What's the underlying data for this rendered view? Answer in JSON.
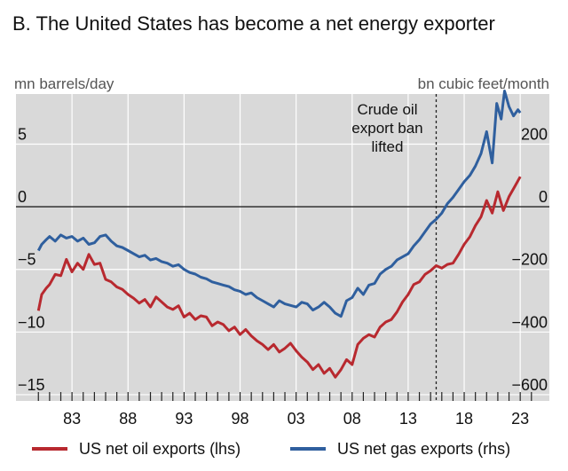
{
  "chart_data": {
    "type": "line",
    "title": "B. The United States has become a net energy exporter",
    "left_axis_label": "mn barrels/day",
    "right_axis_label": "bn cubic feet/month",
    "left_ylim": [
      -15.5,
      9
    ],
    "right_ylim": [
      -620,
      360
    ],
    "left_ticks": [
      {
        "value": 5,
        "label": "5"
      },
      {
        "value": 0,
        "label": "0"
      },
      {
        "value": -5,
        "label": "−5"
      },
      {
        "value": -10,
        "label": "−10"
      },
      {
        "value": -15,
        "label": "−15"
      }
    ],
    "right_ticks": [
      {
        "value": 200,
        "label": "200"
      },
      {
        "value": 0,
        "label": "0"
      },
      {
        "value": -200,
        "label": "−200"
      },
      {
        "value": -400,
        "label": "−400"
      },
      {
        "value": -600,
        "label": "−600"
      }
    ],
    "xlim": [
      1978.0,
      2025.6
    ],
    "x_ticks": [
      {
        "value": 1983,
        "label": "83"
      },
      {
        "value": 1988,
        "label": "88"
      },
      {
        "value": 1993,
        "label": "93"
      },
      {
        "value": 1998,
        "label": "98"
      },
      {
        "value": 2003,
        "label": "03"
      },
      {
        "value": 2008,
        "label": "08"
      },
      {
        "value": 2013,
        "label": "13"
      },
      {
        "value": 2018,
        "label": "18"
      },
      {
        "value": 2023,
        "label": "23"
      }
    ],
    "minor_tick_years": [
      1980,
      1981,
      1982,
      1983,
      1984,
      1985,
      1986,
      1987,
      1988,
      1989,
      1990,
      1991,
      1992,
      1993,
      1994,
      1995,
      1996,
      1997,
      1998,
      1999,
      2000,
      2001,
      2002,
      2003,
      2004,
      2005,
      2006,
      2007,
      2008,
      2009,
      2010,
      2011,
      2012,
      2013,
      2014,
      2015,
      2016,
      2017,
      2018,
      2019,
      2020,
      2021,
      2022,
      2023,
      2024
    ],
    "annotation": {
      "x": 2015.5,
      "lines": [
        "Crude oil",
        "export ban",
        "lifted"
      ]
    },
    "colors": {
      "oil": "#b8292f",
      "gas": "#2f5f9e",
      "plot_bg": "#d9d9d9",
      "grid": "#ffffff",
      "zero_line": "#222222",
      "dashed_line": "#222222"
    },
    "grid": true,
    "legend_position": "bottom",
    "series": [
      {
        "key": "oil",
        "name": "US net oil exports (lhs)",
        "axis": "left",
        "x": [
          1980.0,
          1980.3,
          1980.7,
          1981.0,
          1981.5,
          1982.0,
          1982.5,
          1983.0,
          1983.5,
          1984.0,
          1984.5,
          1985.0,
          1985.5,
          1986.0,
          1986.5,
          1987.0,
          1987.5,
          1988.0,
          1988.5,
          1989.0,
          1989.5,
          1990.0,
          1990.5,
          1991.0,
          1991.5,
          1992.0,
          1992.5,
          1993.0,
          1993.5,
          1994.0,
          1994.5,
          1995.0,
          1995.5,
          1996.0,
          1996.5,
          1997.0,
          1997.5,
          1998.0,
          1998.5,
          1999.0,
          1999.5,
          2000.0,
          2000.5,
          2001.0,
          2001.5,
          2002.0,
          2002.5,
          2003.0,
          2003.5,
          2004.0,
          2004.5,
          2005.0,
          2005.5,
          2006.0,
          2006.5,
          2007.0,
          2007.5,
          2008.0,
          2008.5,
          2009.0,
          2009.5,
          2010.0,
          2010.5,
          2011.0,
          2011.5,
          2012.0,
          2012.5,
          2013.0,
          2013.5,
          2014.0,
          2014.5,
          2015.0,
          2015.5,
          2016.0,
          2016.5,
          2017.0,
          2017.5,
          2018.0,
          2018.5,
          2019.0,
          2019.5,
          2020.0,
          2020.5,
          2021.0,
          2021.5,
          2022.0,
          2022.5,
          2023.0
        ],
        "y": [
          -8.3,
          -7.0,
          -6.5,
          -6.2,
          -5.4,
          -5.5,
          -4.2,
          -5.2,
          -4.5,
          -5.0,
          -3.8,
          -4.6,
          -4.5,
          -5.8,
          -6.0,
          -6.4,
          -6.6,
          -7.0,
          -7.3,
          -7.7,
          -7.4,
          -8.0,
          -7.2,
          -7.6,
          -8.0,
          -8.2,
          -7.9,
          -8.8,
          -8.5,
          -9.0,
          -8.7,
          -8.8,
          -9.5,
          -9.2,
          -9.4,
          -9.9,
          -9.6,
          -10.2,
          -9.8,
          -10.3,
          -10.7,
          -11.0,
          -11.4,
          -11.0,
          -11.6,
          -11.3,
          -10.9,
          -11.5,
          -12.0,
          -12.4,
          -13.0,
          -12.6,
          -13.3,
          -12.9,
          -13.6,
          -13.0,
          -12.2,
          -12.6,
          -11.0,
          -10.5,
          -10.2,
          -10.4,
          -9.6,
          -9.2,
          -9.0,
          -8.4,
          -7.6,
          -7.0,
          -6.2,
          -6.0,
          -5.4,
          -5.1,
          -4.7,
          -4.9,
          -4.6,
          -4.5,
          -3.8,
          -3.0,
          -2.4,
          -1.5,
          -0.8,
          0.5,
          -0.5,
          1.2,
          -0.3,
          0.8,
          1.6,
          2.4
        ]
      },
      {
        "key": "gas",
        "name": "US net gas exports (rhs)",
        "axis": "right",
        "x": [
          1980.0,
          1980.3,
          1980.7,
          1981.0,
          1981.5,
          1982.0,
          1982.5,
          1983.0,
          1983.5,
          1984.0,
          1984.5,
          1985.0,
          1985.5,
          1986.0,
          1986.5,
          1987.0,
          1987.5,
          1988.0,
          1988.5,
          1989.0,
          1989.5,
          1990.0,
          1990.5,
          1991.0,
          1991.5,
          1992.0,
          1992.5,
          1993.0,
          1993.5,
          1994.0,
          1994.5,
          1995.0,
          1995.5,
          1996.0,
          1996.5,
          1997.0,
          1997.5,
          1998.0,
          1998.5,
          1999.0,
          1999.5,
          2000.0,
          2000.5,
          2001.0,
          2001.5,
          2002.0,
          2002.5,
          2003.0,
          2003.5,
          2004.0,
          2004.5,
          2005.0,
          2005.5,
          2006.0,
          2006.5,
          2007.0,
          2007.5,
          2008.0,
          2008.5,
          2009.0,
          2009.5,
          2010.0,
          2010.5,
          2011.0,
          2011.5,
          2012.0,
          2012.5,
          2013.0,
          2013.5,
          2014.0,
          2014.5,
          2015.0,
          2015.5,
          2016.0,
          2016.5,
          2017.0,
          2017.5,
          2018.0,
          2018.5,
          2019.0,
          2019.5,
          2020.0,
          2020.5,
          2020.9,
          2021.3,
          2021.6,
          2022.0,
          2022.4,
          2022.8,
          2023.0
        ],
        "y": [
          -140,
          -120,
          -105,
          -95,
          -110,
          -90,
          -100,
          -95,
          -110,
          -100,
          -120,
          -115,
          -95,
          -90,
          -110,
          -125,
          -130,
          -140,
          -150,
          -160,
          -155,
          -170,
          -165,
          -175,
          -180,
          -190,
          -185,
          -200,
          -210,
          -215,
          -225,
          -230,
          -240,
          -245,
          -250,
          -255,
          -265,
          -270,
          -280,
          -275,
          -290,
          -300,
          -310,
          -320,
          -300,
          -310,
          -315,
          -320,
          -305,
          -310,
          -330,
          -320,
          -305,
          -320,
          -340,
          -350,
          -300,
          -290,
          -260,
          -280,
          -250,
          -245,
          -215,
          -200,
          -190,
          -170,
          -160,
          -150,
          -125,
          -105,
          -80,
          -55,
          -40,
          -20,
          10,
          30,
          55,
          80,
          100,
          130,
          170,
          240,
          140,
          330,
          280,
          370,
          320,
          290,
          310,
          300
        ]
      }
    ]
  }
}
